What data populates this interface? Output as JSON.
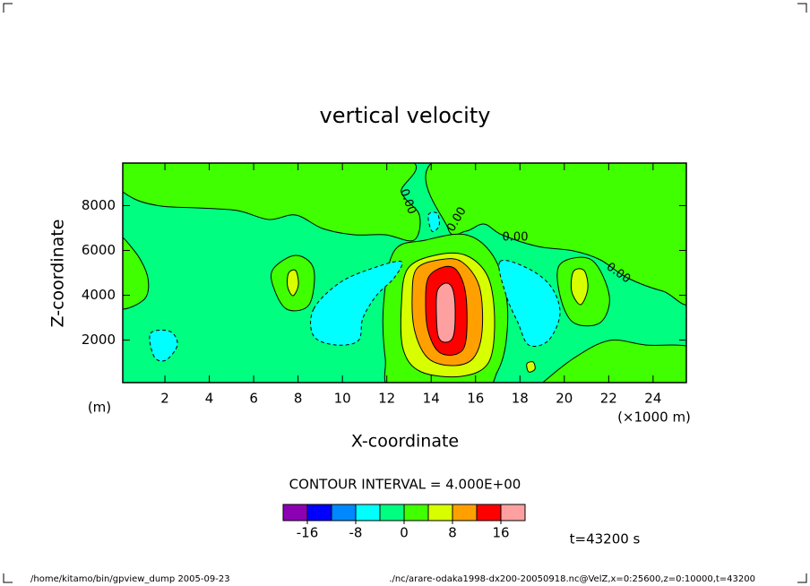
{
  "chart_data": {
    "type": "contour",
    "title": "vertical velocity",
    "xlabel": "X-coordinate",
    "ylabel": "Z-coordinate",
    "xunit": "(×1000 m)",
    "yunit": "(m)",
    "xlim": [
      0.1,
      25.5
    ],
    "ylim": [
      100,
      9900
    ],
    "xticks": [
      2,
      4,
      6,
      8,
      10,
      12,
      14,
      16,
      18,
      20,
      22,
      24
    ],
    "yticks": [
      2000,
      4000,
      6000,
      8000
    ],
    "levels": [
      -20,
      -16,
      -12,
      -8,
      -4,
      0,
      4,
      8,
      12,
      16,
      20
    ],
    "colors": [
      "#8c00b4",
      "#0000ff",
      "#0088ff",
      "#00ffff",
      "#00ff80",
      "#40ff00",
      "#d8ff00",
      "#ffa000",
      "#ff0000",
      "#ffa0a0"
    ],
    "background_level": -4,
    "regions": [
      0,
      0,
      0,
      0,
      0,
      0,
      0,
      4,
      4,
      4,
      4,
      8,
      12,
      16,
      -8,
      -8,
      -8,
      -8
    ],
    "contour_labels": [
      "0.00",
      "0.00",
      "0.00",
      "0.00"
    ],
    "contour_interval": "CONTOUR INTERVAL = 4.000E+00",
    "colorbar_ticks": [
      -16,
      -8,
      0,
      8,
      16
    ],
    "time_label": "t=43200 s",
    "footer_left": "/home/kitamo/bin/gpview_dump  2005-09-23",
    "footer_right": "./nc/arare-odaka1998-dx200-20050918.nc@VelZ,x=0:25600,z=0:10000,t=43200"
  }
}
